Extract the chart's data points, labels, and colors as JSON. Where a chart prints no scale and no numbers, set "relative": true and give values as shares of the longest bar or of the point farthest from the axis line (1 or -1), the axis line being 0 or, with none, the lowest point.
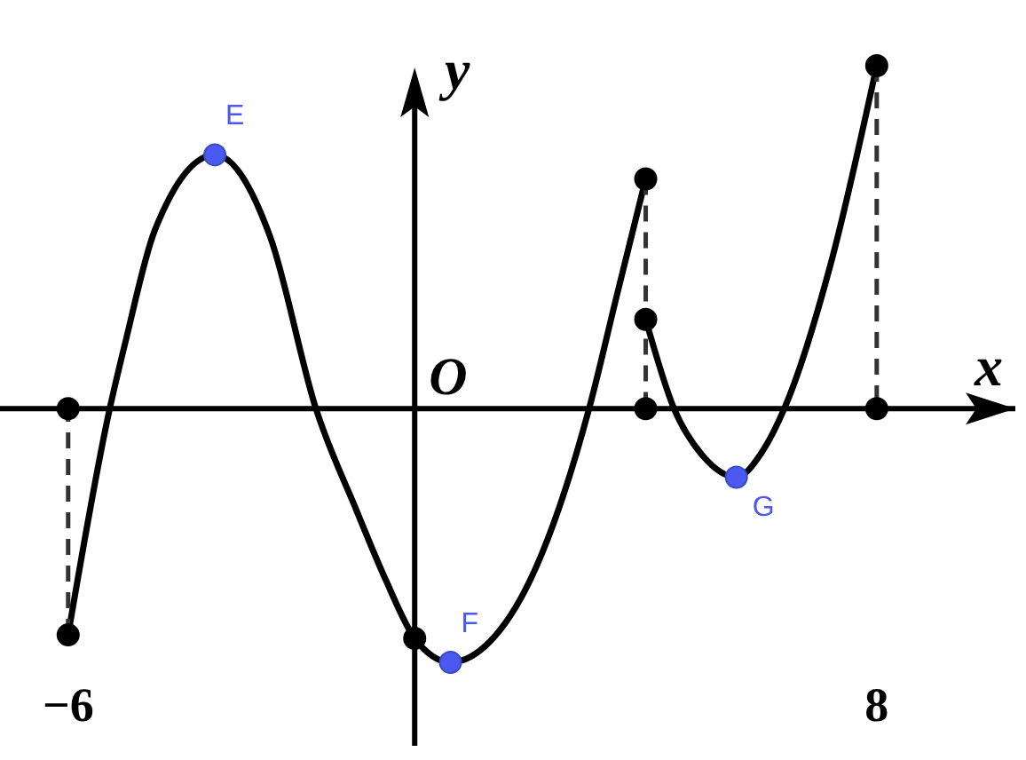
{
  "chart_data": {
    "type": "line",
    "relative": true,
    "xlabel": "x",
    "ylabel": "y",
    "xlim": [
      -7.18,
      10.4
    ],
    "xticks": [
      {
        "value": -6,
        "label": "−6"
      },
      8
    ],
    "series": [
      {
        "type": "line",
        "color": "#000000",
        "line_style": "solid",
        "x": [
          -6,
          -5.28,
          -5,
          -4.5,
          -3.46,
          -2.5,
          -1.71,
          -1,
          -0.5,
          0,
          0.62,
          1.3,
          2,
          3.02,
          3.5,
          4
        ],
        "values": [
          -0.66,
          0,
          0.2,
          0.52,
          0.74,
          0.5,
          0,
          -0.3,
          -0.5,
          -0.67,
          -0.74,
          -0.68,
          -0.5,
          0,
          0.33,
          0.67
        ]
      },
      {
        "type": "line",
        "color": "#000000",
        "line_style": "solid",
        "x": [
          4,
          4.49,
          5,
          5.57,
          6,
          6.4,
          7.2,
          8
        ],
        "values": [
          0.26,
          0,
          -0.14,
          -0.2,
          -0.13,
          0,
          0.42,
          1
        ]
      },
      {
        "type": "line",
        "color": "#333333",
        "line_style": "dashed",
        "x": [
          -6,
          -6
        ],
        "values": [
          -0.66,
          0
        ]
      },
      {
        "type": "line",
        "color": "#333333",
        "line_style": "dashed",
        "x": [
          4,
          4
        ],
        "values": [
          0.67,
          0
        ]
      },
      {
        "type": "line",
        "color": "#333333",
        "line_style": "dashed",
        "x": [
          8,
          8
        ],
        "values": [
          1,
          0
        ]
      },
      {
        "type": "scatter",
        "color": "#000000",
        "x": [
          -6,
          -6,
          0,
          4,
          4,
          4,
          8,
          8
        ],
        "values": [
          -0.66,
          0,
          -0.67,
          0.67,
          0.26,
          0,
          1,
          0
        ]
      },
      {
        "type": "scatter",
        "color": "#4a5af0",
        "x": [
          -3.46,
          0.62,
          5.57
        ],
        "values": [
          0.74,
          -0.74,
          -0.2
        ]
      }
    ],
    "annotations": [
      {
        "text": "E",
        "x": -3.46,
        "y": 0.74
      },
      {
        "text": "F",
        "x": 0.62,
        "y": -0.74
      },
      {
        "text": "G",
        "x": 5.57,
        "y": -0.2
      },
      "O"
    ]
  }
}
